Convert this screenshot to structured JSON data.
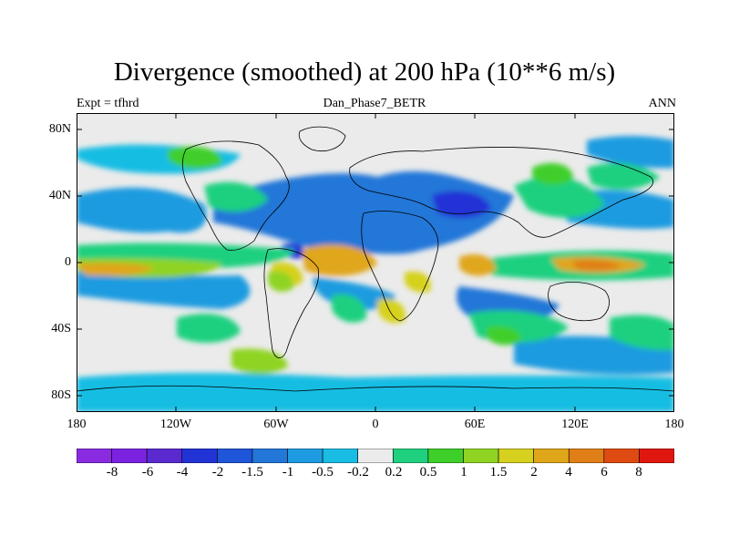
{
  "title": "Divergence (smoothed) at 200 hPa (10**6 m/s)",
  "expt_label": "Expt = tfhrd",
  "case_label": "Dan_Phase7_BETR",
  "season_label": "ANN",
  "y_ticks": [
    "80N",
    "40N",
    "0",
    "40S",
    "80S"
  ],
  "x_ticks": [
    "180",
    "120W",
    "60W",
    "0",
    "60E",
    "120E",
    "180"
  ],
  "colorbar": {
    "labels": [
      "-8",
      "-6",
      "-4",
      "-2",
      "-1.5",
      "-1",
      "-0.5",
      "-0.2",
      "0.2",
      "0.5",
      "1",
      "1.5",
      "2",
      "4",
      "6",
      "8"
    ],
    "colors": [
      "#8a2be2",
      "#7b22e0",
      "#5a2ad0",
      "#2233d6",
      "#1f55d8",
      "#2277d8",
      "#1e9be0",
      "#19bde3",
      "#ebebeb",
      "#1fd07f",
      "#3fcf2a",
      "#8fd423",
      "#d6d11e",
      "#e0a61a",
      "#e07f17",
      "#df4a12",
      "#e0170f"
    ]
  },
  "palette": {
    "neutral": "#ebebeb",
    "deep_blue": "#2233d6",
    "mid_blue": "#2277d8",
    "light_blue": "#1e9be0",
    "cyan": "#19bde3",
    "green": "#1fd07f",
    "lime": "#3fcf2a",
    "yellow_green": "#8fd423",
    "yellow": "#d6d11e",
    "orange": "#e0a61a",
    "dark_orange": "#e07f17",
    "red": "#df4a12"
  }
}
